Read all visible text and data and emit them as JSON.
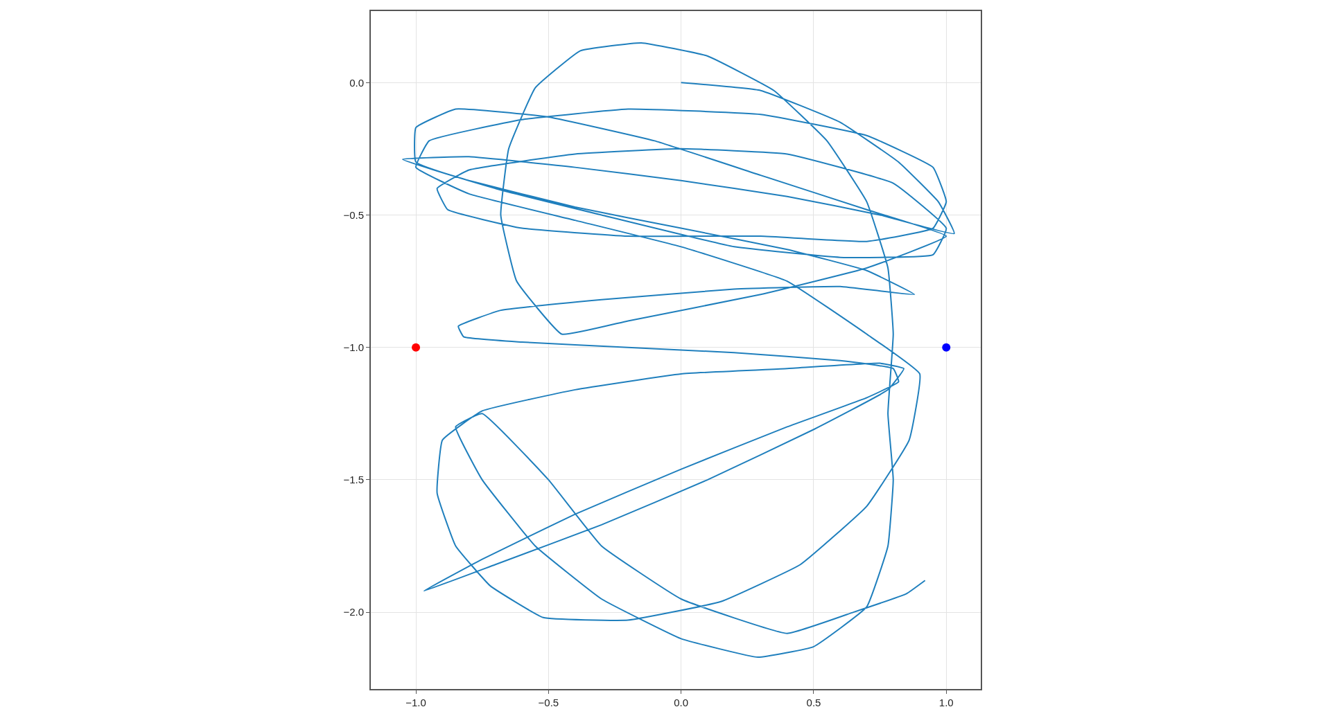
{
  "chart_data": {
    "type": "line",
    "xlim": [
      -1.17,
      1.13
    ],
    "ylim": [
      -2.29,
      0.27
    ],
    "xticks": [
      {
        "value": -1,
        "label": "−1.0"
      },
      {
        "value": -0.5,
        "label": "−0.5"
      },
      {
        "value": 0,
        "label": "0.0"
      },
      {
        "value": 0.5,
        "label": "0.5"
      },
      {
        "value": 1,
        "label": "1.0"
      }
    ],
    "yticks": [
      {
        "value": -2,
        "label": "−2.0"
      },
      {
        "value": -1.5,
        "label": "−1.5"
      },
      {
        "value": -1,
        "label": "−1.0"
      },
      {
        "value": -0.5,
        "label": "−0.5"
      },
      {
        "value": 0,
        "label": "0.0"
      }
    ],
    "grid": true,
    "legend": false,
    "series": [
      {
        "color": "#1f7fbd",
        "marker": "none",
        "line_style": "solid",
        "x": [
          0,
          0.3,
          0.6,
          0.82,
          0.97,
          1.03,
          0.75,
          0.4,
          0,
          -0.4,
          -0.8,
          -1.05,
          -0.8,
          -0.4,
          0,
          0.4,
          0.7,
          0.88,
          0.6,
          0.2,
          -0.3,
          -0.68,
          -0.84,
          -0.82,
          -0.6,
          -0.2,
          0.2,
          0.6,
          0.8,
          0.82,
          0.7,
          0.4,
          0,
          -0.4,
          -0.75,
          -0.97,
          -0.7,
          -0.3,
          0.1,
          0.5,
          0.78,
          0.84,
          0.75,
          0.4,
          0,
          -0.4,
          -0.75,
          -0.9,
          -0.92,
          -0.85,
          -0.72,
          -0.52,
          -0.2,
          0.15,
          0.45,
          0.7,
          0.86,
          0.9,
          0.7,
          0.4,
          0,
          -0.4,
          -0.8,
          -1.0,
          -0.95,
          -0.6,
          -0.2,
          0.3,
          0.7,
          0.95,
          1.0,
          0.95,
          0.7,
          0.3,
          -0.2,
          -0.6,
          -0.88,
          -0.92,
          -0.8,
          -0.4,
          0,
          0.4,
          0.8,
          1.0,
          0.95,
          0.6,
          0.2,
          -0.3,
          -0.7,
          -1.0,
          -1.0,
          -0.85,
          -0.5,
          -0.1,
          0.3,
          0.7,
          1.0,
          0.7,
          0.3,
          -0.2,
          -0.45,
          -0.62,
          -0.68,
          -0.65,
          -0.55,
          -0.38,
          -0.15,
          0.1,
          0.35,
          0.55,
          0.7,
          0.78,
          0.8,
          0.78,
          0.8,
          0.78,
          0.7,
          0.5,
          0.29,
          0,
          -0.3,
          -0.55,
          -0.75,
          -0.85,
          -0.75,
          -0.5,
          -0.3,
          0,
          0.4,
          0.65,
          0.85,
          0.92
        ],
        "values": [
          0,
          -0.03,
          -0.15,
          -0.3,
          -0.45,
          -0.57,
          -0.5,
          -0.43,
          -0.37,
          -0.32,
          -0.28,
          -0.29,
          -0.37,
          -0.47,
          -0.55,
          -0.63,
          -0.71,
          -0.8,
          -0.77,
          -0.78,
          -0.82,
          -0.86,
          -0.92,
          -0.96,
          -0.98,
          -1.0,
          -1.02,
          -1.05,
          -1.08,
          -1.13,
          -1.19,
          -1.3,
          -1.46,
          -1.63,
          -1.8,
          -1.92,
          -1.82,
          -1.67,
          -1.5,
          -1.31,
          -1.16,
          -1.08,
          -1.06,
          -1.08,
          -1.1,
          -1.16,
          -1.24,
          -1.35,
          -1.55,
          -1.75,
          -1.9,
          -2.02,
          -2.03,
          -1.96,
          -1.82,
          -1.6,
          -1.35,
          -1.1,
          -0.95,
          -0.75,
          -0.62,
          -0.52,
          -0.42,
          -0.32,
          -0.22,
          -0.14,
          -0.1,
          -0.12,
          -0.2,
          -0.32,
          -0.45,
          -0.55,
          -0.6,
          -0.58,
          -0.58,
          -0.55,
          -0.48,
          -0.4,
          -0.33,
          -0.27,
          -0.25,
          -0.27,
          -0.38,
          -0.55,
          -0.65,
          -0.66,
          -0.62,
          -0.5,
          -0.4,
          -0.3,
          -0.17,
          -0.1,
          -0.13,
          -0.22,
          -0.35,
          -0.48,
          -0.58,
          -0.7,
          -0.8,
          -0.9,
          -0.95,
          -0.75,
          -0.5,
          -0.25,
          -0.02,
          0.12,
          0.15,
          0.1,
          -0.03,
          -0.22,
          -0.45,
          -0.7,
          -0.95,
          -1.25,
          -1.5,
          -1.75,
          -1.98,
          -2.13,
          -2.17,
          -2.1,
          -1.95,
          -1.75,
          -1.5,
          -1.3,
          -1.25,
          -1.5,
          -1.75,
          -1.95,
          -2.08,
          -2.0,
          -1.93,
          -1.88
        ]
      },
      {
        "type": "scatter",
        "marker": "circle",
        "x": [
          -1,
          1
        ],
        "values": [
          -1,
          -1
        ],
        "colors": [
          "#ff0000",
          "#0000ff"
        ]
      }
    ]
  }
}
